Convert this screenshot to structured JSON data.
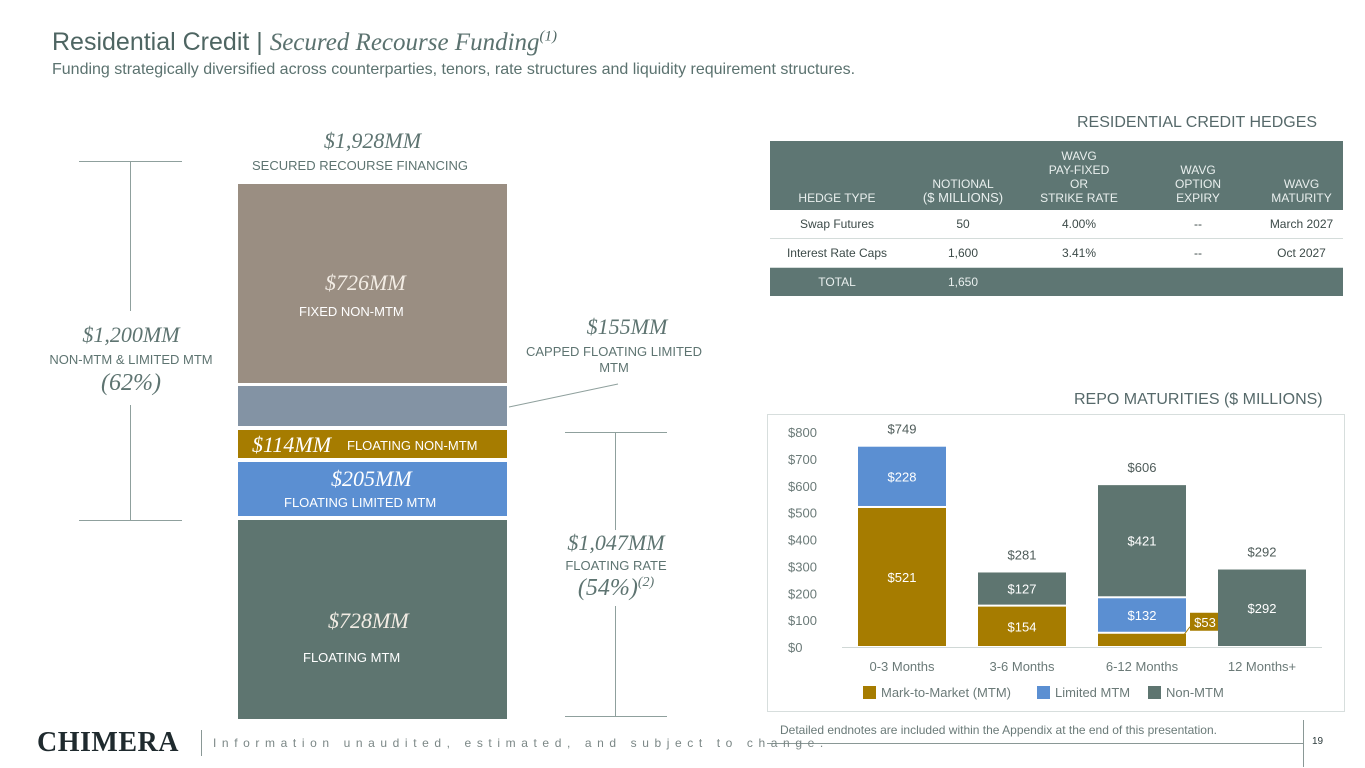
{
  "header": {
    "title_main": "Residential Credit | ",
    "title_sub": "Secured Recourse Funding",
    "title_sup": "(1)",
    "subtitle": "Funding strategically diversified across counterparties, tenors, rate structures and liquidity requirement structures."
  },
  "funding": {
    "total_amount": "$1,928MM",
    "total_label": "SECURED RECOURSE FINANCING",
    "left_amount": "$1,200MM",
    "left_label": "NON-MTM & LIMITED MTM",
    "left_pct": "(62%)",
    "capped_amount": "$155MM",
    "capped_label_line1": "CAPPED FLOATING LIMITED",
    "capped_label_line2": "MTM",
    "right_amount": "$1,047MM",
    "right_label": "FLOATING RATE",
    "right_pct": "(54%)",
    "right_sup": "(2)",
    "blocks": [
      {
        "amount": "$726MM",
        "label": "FIXED NON-MTM",
        "color": "#9a8e82"
      },
      {
        "amount": "",
        "label": "",
        "color": "#8393a4"
      },
      {
        "amount": "$114MM",
        "label": "FLOATING NON-MTM",
        "color": "#a67c00"
      },
      {
        "amount": "$205MM",
        "label": "FLOATING LIMITED MTM",
        "color": "#5b8fd2"
      },
      {
        "amount": "$728MM",
        "label": "FLOATING MTM",
        "color": "#5e7570"
      }
    ]
  },
  "hedges": {
    "title": "RESIDENTIAL CREDIT HEDGES",
    "headers": {
      "c1": "HEDGE TYPE",
      "c2a": "NOTIONAL",
      "c2b": "($ MILLIONS)",
      "c3a": "WAVG",
      "c3b": "PAY-FIXED",
      "c3c": "OR",
      "c3d": "STRIKE RATE",
      "c4a": "WAVG",
      "c4b": "OPTION",
      "c4c": "EXPIRY",
      "c5a": "WAVG",
      "c5b": "MATURITY"
    },
    "rows": [
      {
        "type": "Swap Futures",
        "notional": "50",
        "rate": "4.00%",
        "expiry": "--",
        "maturity": "March 2027"
      },
      {
        "type": "Interest Rate Caps",
        "notional": "1,600",
        "rate": "3.41%",
        "expiry": "--",
        "maturity": "Oct 2027"
      }
    ],
    "total": {
      "label": "TOTAL",
      "notional": "1,650"
    }
  },
  "repo": {
    "title": "REPO MATURITIES ($ MILLIONS)"
  },
  "chart_data": {
    "type": "bar",
    "stacked": true,
    "categories": [
      "0-3 Months",
      "3-6 Months",
      "6-12 Months",
      "12 Months+"
    ],
    "series": [
      {
        "name": "Mark-to-Market (MTM)",
        "values": [
          521,
          154,
          53,
          0
        ],
        "labels": [
          "$521",
          "$154",
          "$53",
          ""
        ],
        "color": "#a67c00"
      },
      {
        "name": "Limited MTM",
        "values": [
          228,
          0,
          132,
          0
        ],
        "labels": [
          "$228",
          "",
          "$132",
          ""
        ],
        "color": "#5b8fd2"
      },
      {
        "name": "Non-MTM",
        "values": [
          0,
          127,
          421,
          292
        ],
        "labels": [
          "",
          "$127",
          "$421",
          "$292"
        ],
        "color": "#5e7570"
      }
    ],
    "totals": [
      "$749",
      "$281",
      "$606",
      "$292"
    ],
    "yticks": [
      "$0",
      "$100",
      "$200",
      "$300",
      "$400",
      "$500",
      "$600",
      "$700",
      "$800"
    ],
    "ylim": [
      0,
      800
    ],
    "grid": false,
    "legend_position": "bottom"
  },
  "footer": {
    "note": "Detailed endnotes are included within the Appendix at the end of this presentation.",
    "logo": "CHIMERA",
    "tagline": "Information unaudited, estimated, and subject to change.",
    "page": "19"
  }
}
